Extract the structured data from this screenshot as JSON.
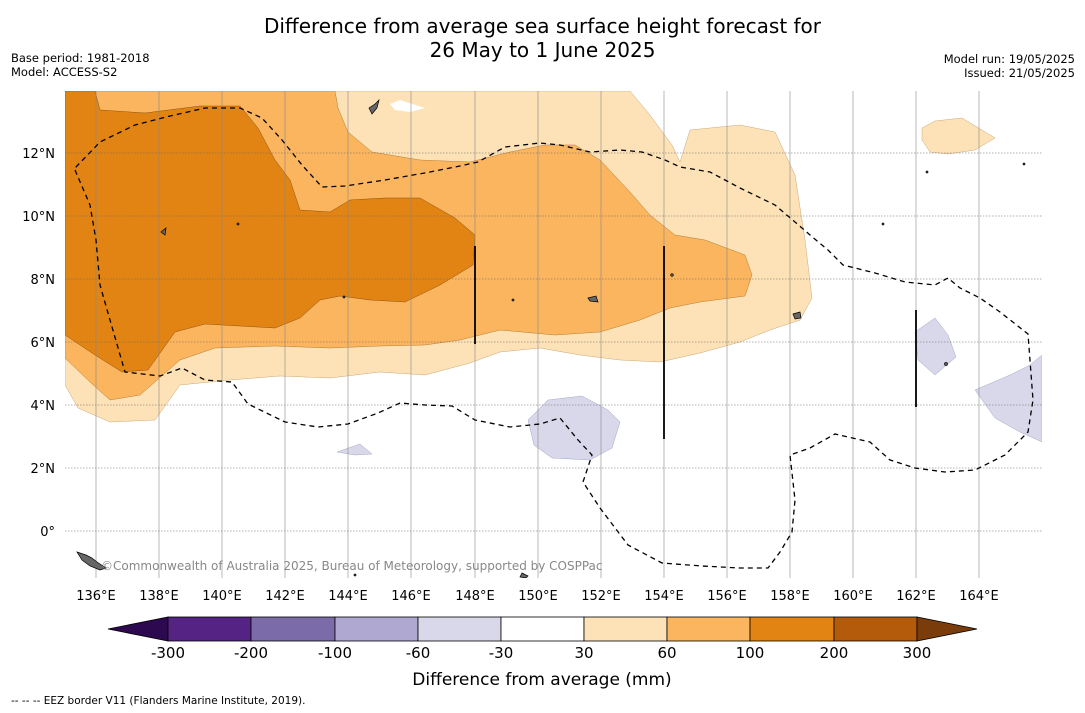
{
  "title_line1": "Difference from average sea surface height forecast for",
  "title_line2": "26 May to 1 June 2025",
  "base_period": "Base period: 1981-2018",
  "model": "Model: ACCESS-S2",
  "model_run": "Model run: 19/05/2025",
  "issued": "Issued: 21/05/2025",
  "copyright": "©Commonwealth of Australia 2025, Bureau of Meteorology, supported by COSPPac",
  "lon_labels": [
    "136°E",
    "138°E",
    "140°E",
    "142°E",
    "144°E",
    "146°E",
    "148°E",
    "150°E",
    "152°E",
    "154°E",
    "156°E",
    "158°E",
    "160°E",
    "162°E",
    "164°E"
  ],
  "lat_labels": [
    "12°N",
    "10°N",
    "8°N",
    "6°N",
    "4°N",
    "2°N",
    "0°"
  ],
  "colorbar": {
    "label": "Difference from average (mm)",
    "ticks": [
      "-300",
      "-200",
      "-100",
      "-60",
      "-30",
      "30",
      "60",
      "100",
      "200",
      "300"
    ],
    "colors": {
      "under": "#2d0a4f",
      "bins": [
        "#552383",
        "#7b6ba9",
        "#afa8d1",
        "#d8d8ea",
        "#ffffff",
        "#fde2b7",
        "#fbb55f",
        "#e28413",
        "#b35b0b"
      ],
      "over": "#7a3c0a"
    }
  },
  "footnote": "--  --  -- EEZ border V11 (Flanders Marine Institute, 2019)."
}
